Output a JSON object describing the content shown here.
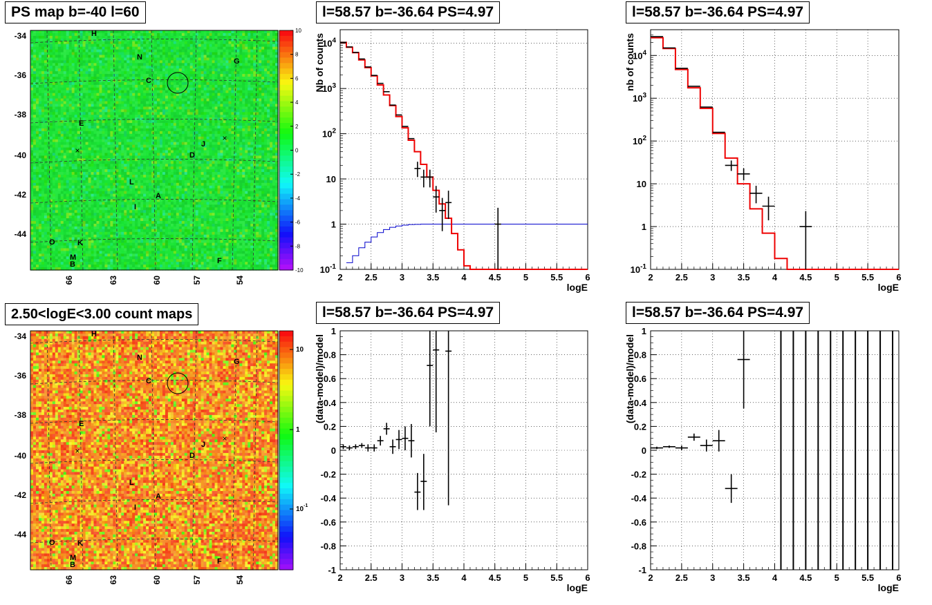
{
  "panels": {
    "ps_map": {
      "title": "PS map b=-40 l=60",
      "y_ticks": [
        "-34",
        "-36",
        "-38",
        "-40",
        "-42",
        "-44"
      ],
      "x_ticks": [
        "66",
        "63",
        "60",
        "57",
        "54"
      ],
      "colorbar_ticks": [
        "10",
        "8",
        "6",
        "4",
        "2",
        "0",
        "-2",
        "-4",
        "-6",
        "-8",
        "-10"
      ],
      "source_labels": [
        "H",
        "N",
        "G",
        "C",
        "E",
        "J",
        "D",
        "L",
        "A",
        "I",
        "O",
        "K",
        "M",
        "B",
        "F"
      ]
    },
    "count_map": {
      "title": "2.50<logE<3.00 count maps",
      "y_ticks": [
        "-34",
        "-36",
        "-38",
        "-40",
        "-42",
        "-44"
      ],
      "x_ticks": [
        "66",
        "63",
        "60",
        "57",
        "54"
      ],
      "colorbar_ticks": [
        "10",
        "1",
        "10-1"
      ],
      "source_labels": [
        "H",
        "N",
        "G",
        "C",
        "E",
        "J",
        "D",
        "L",
        "A",
        "I",
        "O",
        "K",
        "M",
        "B",
        "F"
      ]
    },
    "spec1": {
      "title": "l=58.57 b=-36.64 PS=4.97"
    },
    "spec2": {
      "title": "l=58.57 b=-36.64 PS=4.97"
    },
    "resid1": {
      "title": "l=58.57 b=-36.64 PS=4.97"
    },
    "resid2": {
      "title": "l=58.57 b=-36.64 PS=4.97"
    }
  },
  "chart_data": [
    {
      "type": "heatmap",
      "title": "PS map b=-40 l=60",
      "xlabel": "",
      "ylabel": "",
      "x_ticks": [
        66,
        63,
        60,
        57,
        54
      ],
      "y_ticks": [
        -34,
        -36,
        -38,
        -40,
        -42,
        -44
      ],
      "zlim": [
        -10,
        10
      ],
      "z_ticks": [
        10,
        8,
        6,
        4,
        2,
        0,
        -2,
        -4,
        -6,
        -8,
        -10
      ],
      "dominant_value": 0
    },
    {
      "type": "heatmap",
      "title": "2.50<logE<3.00 count maps",
      "xlabel": "",
      "ylabel": "",
      "x_ticks": [
        66,
        63,
        60,
        57,
        54
      ],
      "y_ticks": [
        -34,
        -36,
        -38,
        -40,
        -42,
        -44
      ],
      "z_scale": "log",
      "z_ticks": [
        "10",
        "1",
        "10^-1"
      ],
      "dominant_value": 3
    },
    {
      "type": "line",
      "title": "l=58.57 b=-36.64 PS=4.97",
      "xlabel": "logE",
      "ylabel": "Nb of counts",
      "xlim": [
        2,
        6
      ],
      "ylim": [
        0.1,
        20000
      ],
      "yscale": "log",
      "x_ticks": [
        "2",
        "2.5",
        "3",
        "3.5",
        "4",
        "4.5",
        "5",
        "5.5",
        "6"
      ],
      "y_ticks": [
        [
          "10^4",
          10000
        ],
        [
          "10^3",
          1000
        ],
        [
          "10^2",
          100
        ],
        [
          "10",
          10
        ],
        [
          "1",
          1
        ],
        [
          "10^-1",
          0.1
        ]
      ],
      "model_edges": [
        2,
        2.1,
        2.2,
        2.3,
        2.4,
        2.5,
        2.6,
        2.7,
        2.8,
        2.9,
        3,
        3.1,
        3.2,
        3.3,
        3.4,
        3.5,
        3.6,
        3.7,
        3.8,
        3.9,
        4,
        4.1,
        4.2,
        4.3,
        6
      ],
      "model_values": [
        10500,
        8200,
        6200,
        4300,
        2900,
        1900,
        1200,
        720,
        420,
        240,
        135,
        72,
        40,
        21,
        11,
        5.6,
        2.8,
        1.35,
        0.62,
        0.27,
        0.12,
        0.1,
        0.1,
        0.1
      ],
      "blue_edges": [
        2.1,
        2.2,
        2.3,
        2.4,
        2.5,
        2.6,
        2.7,
        2.8,
        2.9,
        3,
        3.1,
        3.2,
        3.3,
        6
      ],
      "blue_values": [
        0.14,
        0.2,
        0.3,
        0.4,
        0.52,
        0.65,
        0.76,
        0.85,
        0.91,
        0.95,
        0.98,
        0.99,
        1
      ],
      "points": [
        {
          "x": 2.05,
          "y": 10500
        },
        {
          "x": 2.15,
          "y": 8300
        },
        {
          "x": 2.25,
          "y": 6300
        },
        {
          "x": 2.35,
          "y": 4500
        },
        {
          "x": 2.45,
          "y": 3000
        },
        {
          "x": 2.55,
          "y": 1950
        },
        {
          "x": 2.65,
          "y": 1300
        },
        {
          "x": 2.75,
          "y": 850
        },
        {
          "x": 2.85,
          "y": 430
        },
        {
          "x": 2.95,
          "y": 260
        },
        {
          "x": 3.05,
          "y": 145
        },
        {
          "x": 3.15,
          "y": 78
        },
        {
          "x": 3.25,
          "y": 17,
          "lo": 11,
          "hi": 24
        },
        {
          "x": 3.35,
          "y": 11,
          "lo": 6.5,
          "hi": 16
        },
        {
          "x": 3.45,
          "y": 11,
          "lo": 6.5,
          "hi": 16
        },
        {
          "x": 3.55,
          "y": 4,
          "lo": 1.8,
          "hi": 7
        },
        {
          "x": 3.65,
          "y": 2,
          "lo": 0.7,
          "hi": 3.8
        },
        {
          "x": 3.75,
          "y": 3,
          "lo": 1.3,
          "hi": 5.5
        },
        {
          "x": 4.55,
          "y": 1,
          "lo": 0.1,
          "hi": 2.3
        }
      ]
    },
    {
      "type": "line",
      "title": "l=58.57 b=-36.64 PS=4.97",
      "xlabel": "logE",
      "ylabel": "nb of counts",
      "xlim": [
        2,
        6
      ],
      "ylim": [
        0.1,
        40000
      ],
      "yscale": "log",
      "x_ticks": [
        "2",
        "2.5",
        "3",
        "3.5",
        "4",
        "4.5",
        "5",
        "5.5",
        "6"
      ],
      "y_ticks": [
        [
          "10^4",
          10000
        ],
        [
          "10^3",
          1000
        ],
        [
          "10^2",
          100
        ],
        [
          "10",
          10
        ],
        [
          "1",
          1
        ],
        [
          "10^-1",
          0.1
        ]
      ],
      "model_edges": [
        2,
        2.2,
        2.4,
        2.6,
        2.8,
        3,
        3.2,
        3.4,
        3.6,
        3.8,
        4,
        4.2,
        6
      ],
      "model_values": [
        26000,
        14500,
        4700,
        1750,
        580,
        150,
        40,
        10,
        2.6,
        0.7,
        0.18,
        0.1
      ],
      "points": [
        {
          "x": 2.1,
          "y": 27500
        },
        {
          "x": 2.3,
          "y": 15000
        },
        {
          "x": 2.5,
          "y": 5000
        },
        {
          "x": 2.7,
          "y": 1900
        },
        {
          "x": 2.9,
          "y": 620
        },
        {
          "x": 3.1,
          "y": 160
        },
        {
          "x": 3.3,
          "y": 27,
          "lo": 20,
          "hi": 35
        },
        {
          "x": 3.5,
          "y": 17,
          "lo": 12,
          "hi": 23
        },
        {
          "x": 3.7,
          "y": 6,
          "lo": 3.5,
          "hi": 9
        },
        {
          "x": 3.9,
          "y": 3,
          "lo": 1.4,
          "hi": 5
        },
        {
          "x": 4.5,
          "y": 1,
          "lo": 0.1,
          "hi": 2.3
        }
      ]
    },
    {
      "type": "scatter",
      "title": "l=58.57 b=-36.64 PS=4.97",
      "xlabel": "logE",
      "ylabel": "(data-model)/model",
      "xlim": [
        2,
        6
      ],
      "ylim": [
        -1,
        1
      ],
      "x_ticks": [
        "2",
        "2.5",
        "3",
        "3.5",
        "4",
        "4.5",
        "5",
        "5.5",
        "6"
      ],
      "y_ticks": [
        "-1",
        "-0.8",
        "-0.6",
        "-0.4",
        "-0.2",
        "0",
        "0.2",
        "0.4",
        "0.6",
        "0.8",
        "1"
      ],
      "points": [
        {
          "x": 2.05,
          "y": 0.03,
          "lo": 0.01,
          "hi": 0.05
        },
        {
          "x": 2.15,
          "y": 0.02,
          "lo": 0.0,
          "hi": 0.04
        },
        {
          "x": 2.25,
          "y": 0.03,
          "lo": 0.01,
          "hi": 0.05
        },
        {
          "x": 2.35,
          "y": 0.04,
          "lo": 0.02,
          "hi": 0.06
        },
        {
          "x": 2.45,
          "y": 0.02,
          "lo": -0.01,
          "hi": 0.05
        },
        {
          "x": 2.55,
          "y": 0.02,
          "lo": -0.01,
          "hi": 0.05
        },
        {
          "x": 2.65,
          "y": 0.08,
          "lo": 0.04,
          "hi": 0.12
        },
        {
          "x": 2.75,
          "y": 0.18,
          "lo": 0.13,
          "hi": 0.23
        },
        {
          "x": 2.85,
          "y": 0.03,
          "lo": -0.03,
          "hi": 0.09
        },
        {
          "x": 2.95,
          "y": 0.09,
          "lo": 0.01,
          "hi": 0.17
        },
        {
          "x": 3.05,
          "y": 0.1,
          "lo": 0.0,
          "hi": 0.2
        },
        {
          "x": 3.15,
          "y": 0.08,
          "lo": -0.06,
          "hi": 0.22
        },
        {
          "x": 3.25,
          "y": -0.35,
          "lo": -0.5,
          "hi": -0.19
        },
        {
          "x": 3.35,
          "y": -0.26,
          "lo": -0.5,
          "hi": -0.03
        },
        {
          "x": 3.45,
          "y": 0.71,
          "lo": 0.2,
          "hi": 1.0
        },
        {
          "x": 3.55,
          "y": 0.84,
          "lo": 0.15,
          "hi": 1.0
        },
        {
          "x": 3.75,
          "y": 0.83,
          "lo": -0.46,
          "hi": 1.0
        }
      ]
    },
    {
      "type": "scatter",
      "title": "l=58.57 b=-36.64 PS=4.97",
      "xlabel": "logE",
      "ylabel": "(data-model)/model",
      "xlim": [
        2,
        6
      ],
      "ylim": [
        -1,
        1
      ],
      "x_ticks": [
        "2",
        "2.5",
        "3",
        "3.5",
        "4",
        "4.5",
        "5",
        "5.5",
        "6"
      ],
      "y_ticks": [
        "-1",
        "-0.8",
        "-0.6",
        "-0.4",
        "-0.2",
        "0",
        "0.2",
        "0.4",
        "0.6",
        "0.8",
        "1"
      ],
      "points": [
        {
          "x": 2.1,
          "y": 0.02,
          "lo": 0.01,
          "hi": 0.03
        },
        {
          "x": 2.3,
          "y": 0.03,
          "lo": 0.02,
          "hi": 0.04
        },
        {
          "x": 2.5,
          "y": 0.02,
          "lo": 0.0,
          "hi": 0.04
        },
        {
          "x": 2.7,
          "y": 0.11,
          "lo": 0.08,
          "hi": 0.14
        },
        {
          "x": 2.9,
          "y": 0.04,
          "lo": -0.01,
          "hi": 0.09
        },
        {
          "x": 3.1,
          "y": 0.08,
          "lo": -0.01,
          "hi": 0.17
        },
        {
          "x": 3.3,
          "y": -0.32,
          "lo": -0.44,
          "hi": -0.2
        },
        {
          "x": 3.5,
          "y": 0.76,
          "lo": 0.35,
          "hi": 1.0
        }
      ],
      "full_range_bars_x": [
        4.1,
        4.3,
        4.5,
        4.7,
        4.9,
        5.1,
        5.3,
        5.5,
        5.7,
        5.9
      ]
    }
  ]
}
